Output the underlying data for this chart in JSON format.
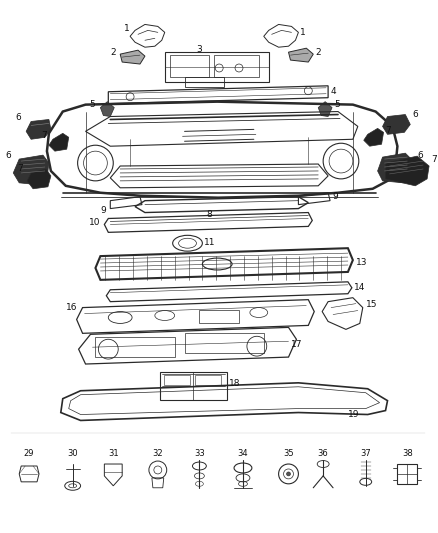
{
  "bg_color": "#ffffff",
  "fig_width": 4.38,
  "fig_height": 5.33,
  "dpi": 100,
  "line_color": "#2a2a2a",
  "dark_color": "#1a1a1a",
  "label_fontsize": 6.5
}
